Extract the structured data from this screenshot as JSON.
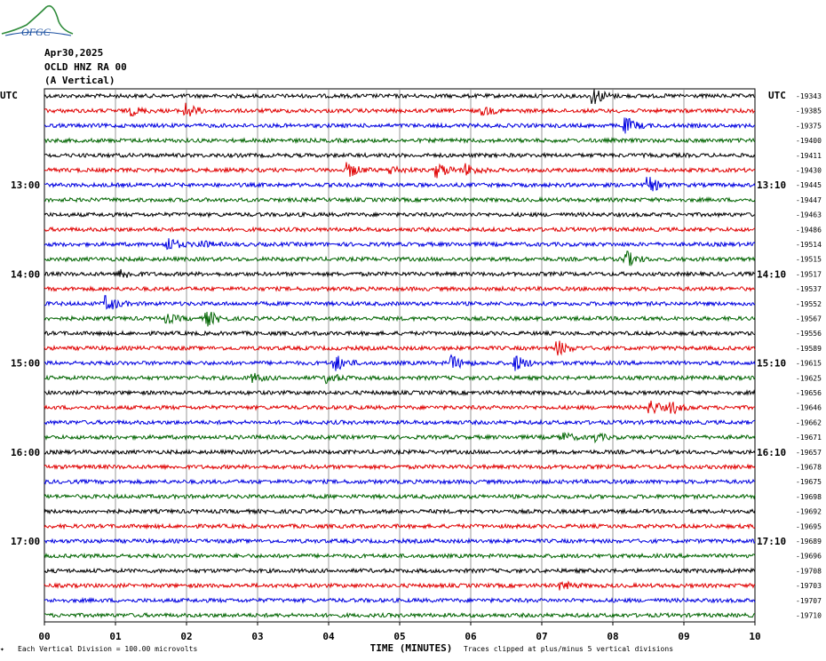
{
  "logo": {
    "text": "OFGC"
  },
  "header": {
    "date": "Apr30,2025",
    "station": "OCLD HNZ RA 00",
    "component": "(A Vertical)"
  },
  "colors": {
    "trace_cycle": [
      "#000000",
      "#e00000",
      "#0000e0",
      "#006400"
    ],
    "grid": "#808080"
  },
  "chart_data": {
    "type": "line",
    "xlabel": "TIME (MINUTES)",
    "xlim": [
      0,
      10
    ],
    "x_ticks": [
      "00",
      "01",
      "02",
      "03",
      "04",
      "05",
      "06",
      "07",
      "08",
      "09",
      "10"
    ],
    "left_axis": {
      "title": "UTC",
      "labels": [
        {
          "row": 6,
          "text": "13:00"
        },
        {
          "row": 12,
          "text": "14:00"
        },
        {
          "row": 18,
          "text": "15:00"
        },
        {
          "row": 24,
          "text": "16:00"
        },
        {
          "row": 30,
          "text": "17:00"
        }
      ]
    },
    "right_axis": {
      "title": "UTC",
      "labels": [
        {
          "row": 6,
          "text": "13:10"
        },
        {
          "row": 12,
          "text": "14:10"
        },
        {
          "row": 18,
          "text": "15:10"
        },
        {
          "row": 24,
          "text": "16:10"
        },
        {
          "row": 30,
          "text": "17:10"
        }
      ]
    },
    "offsets": [
      "-19343",
      "-19385",
      "-19375",
      "-19400",
      "-19411",
      "-19430",
      "-19445",
      "-19447",
      "-19463",
      "-19486",
      "-19514",
      "-19515",
      "-19517",
      "-19537",
      "-19552",
      "-19567",
      "-19556",
      "-19589",
      "-19615",
      "-19625",
      "-19656",
      "-19646",
      "-19662",
      "-19671",
      "-19657",
      "-19678",
      "-19675",
      "-19698",
      "-19692",
      "-19695",
      "-19689",
      "-19696",
      "-19708",
      "-19703",
      "-19707",
      "-19710"
    ],
    "bursts": [
      {
        "row": 0,
        "t": 7.75,
        "amp": 9
      },
      {
        "row": 1,
        "t": 2.0,
        "amp": 8
      },
      {
        "row": 1,
        "t": 1.25,
        "amp": 4
      },
      {
        "row": 1,
        "t": 6.2,
        "amp": 4
      },
      {
        "row": 2,
        "t": 8.2,
        "amp": 8
      },
      {
        "row": 5,
        "t": 4.3,
        "amp": 7
      },
      {
        "row": 5,
        "t": 5.55,
        "amp": 8
      },
      {
        "row": 5,
        "t": 5.95,
        "amp": 6
      },
      {
        "row": 5,
        "t": 4.9,
        "amp": 4
      },
      {
        "row": 6,
        "t": 8.5,
        "amp": 9
      },
      {
        "row": 10,
        "t": 1.75,
        "amp": 7
      },
      {
        "row": 10,
        "t": 2.2,
        "amp": 4
      },
      {
        "row": 11,
        "t": 8.2,
        "amp": 8
      },
      {
        "row": 12,
        "t": 1.1,
        "amp": 5
      },
      {
        "row": 14,
        "t": 0.9,
        "amp": 8
      },
      {
        "row": 15,
        "t": 2.3,
        "amp": 8
      },
      {
        "row": 15,
        "t": 1.75,
        "amp": 4
      },
      {
        "row": 17,
        "t": 7.25,
        "amp": 7
      },
      {
        "row": 18,
        "t": 4.1,
        "amp": 9
      },
      {
        "row": 18,
        "t": 5.75,
        "amp": 7
      },
      {
        "row": 18,
        "t": 6.65,
        "amp": 8
      },
      {
        "row": 19,
        "t": 4.0,
        "amp": 5
      },
      {
        "row": 19,
        "t": 2.95,
        "amp": 4
      },
      {
        "row": 21,
        "t": 8.55,
        "amp": 7
      },
      {
        "row": 21,
        "t": 8.85,
        "amp": 5
      },
      {
        "row": 23,
        "t": 7.3,
        "amp": 5
      },
      {
        "row": 23,
        "t": 7.75,
        "amp": 4
      },
      {
        "row": 33,
        "t": 7.3,
        "amp": 4
      }
    ]
  },
  "footer": {
    "scale_note": "Each Vertical Division = 100.00 microvolts",
    "clip_note": "Traces clipped at plus/minus 5 vertical divisions"
  }
}
